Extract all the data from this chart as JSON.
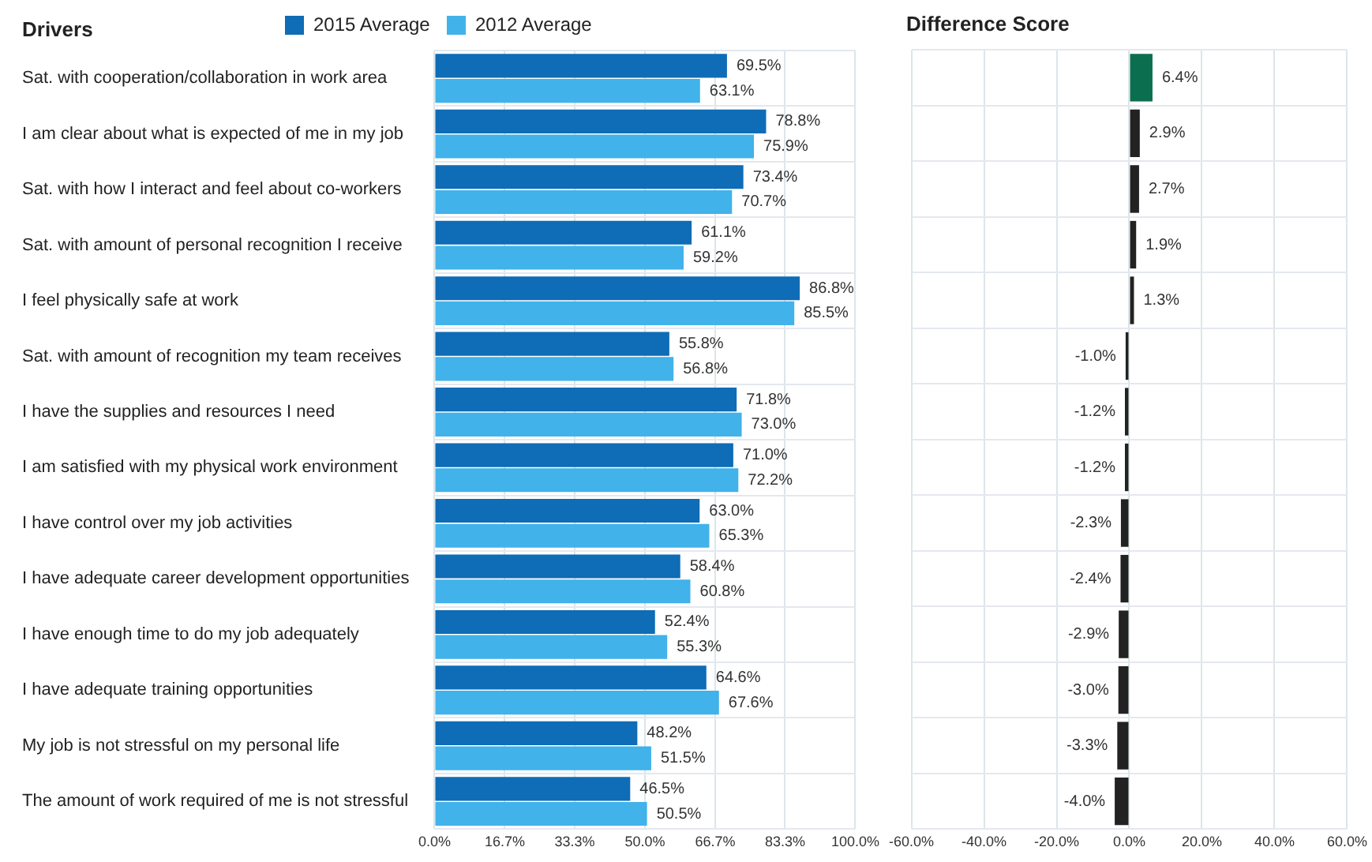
{
  "chart_data": [
    {
      "type": "bar",
      "orientation": "horizontal",
      "ylabel": "Drivers",
      "legend": "top",
      "grid": true,
      "categories": [
        "Sat. with cooperation/collaboration in work area",
        "I am clear about what is expected of me in my job",
        "Sat. with how I interact and feel about co-workers",
        "Sat. with amount of personal recognition I receive",
        "I feel physically safe at work",
        "Sat. with amount of recognition my team receives",
        "I have the supplies and resources I need",
        "I am satisfied with my physical work environment",
        "I have control over my job activities",
        "I have adequate career development opportunities",
        "I have enough time to do my job adequately",
        "I have adequate training opportunities",
        "My job is not stressful on my personal life",
        "The amount of work required of me is not stressful"
      ],
      "series": [
        {
          "name": "2015 Average",
          "color": "#0f6cb6",
          "values": [
            69.5,
            78.8,
            73.4,
            61.1,
            86.8,
            55.8,
            71.8,
            71.0,
            63.0,
            58.4,
            52.4,
            64.6,
            48.2,
            46.5
          ],
          "value_labels": [
            "69.5%",
            "78.8%",
            "73.4%",
            "61.1%",
            "86.8%",
            "55.8%",
            "71.8%",
            "71.0%",
            "63.0%",
            "58.4%",
            "52.4%",
            "64.6%",
            "48.2%",
            "46.5%"
          ]
        },
        {
          "name": "2012 Average",
          "color": "#41b2ea",
          "values": [
            63.1,
            75.9,
            70.7,
            59.2,
            85.5,
            56.8,
            73.0,
            72.2,
            65.3,
            60.8,
            55.3,
            67.6,
            51.5,
            50.5
          ],
          "value_labels": [
            "63.1%",
            "75.9%",
            "70.7%",
            "59.2%",
            "85.5%",
            "56.8%",
            "73.0%",
            "72.2%",
            "65.3%",
            "60.8%",
            "55.3%",
            "67.6%",
            "51.5%",
            "50.5%"
          ]
        }
      ],
      "xlim": [
        0,
        100
      ],
      "xticks": [
        {
          "value": 0,
          "label": "0.0%"
        },
        {
          "value": 16.7,
          "label": "16.7%"
        },
        {
          "value": 33.3,
          "label": "33.3%"
        },
        {
          "value": 50,
          "label": "50.0%"
        },
        {
          "value": 66.7,
          "label": "66.7%"
        },
        {
          "value": 83.3,
          "label": "83.3%"
        },
        {
          "value": 100,
          "label": "100.0%"
        }
      ]
    },
    {
      "type": "bar",
      "orientation": "horizontal",
      "title": "Difference Score",
      "grid": true,
      "tick_labels": "x",
      "categories": [
        null,
        null,
        null,
        null,
        null,
        null,
        null,
        null,
        null,
        null,
        null,
        null,
        null,
        null
      ],
      "series": [
        {
          "colors": [
            "#0b6e4f",
            "#222222",
            "#222222",
            "#222222",
            "#222222",
            "#222222",
            "#222222",
            "#222222",
            "#222222",
            "#222222",
            "#222222",
            "#222222",
            "#222222",
            "#222222"
          ],
          "values": [
            6.4,
            2.9,
            2.7,
            1.9,
            1.3,
            -1.0,
            -1.2,
            -1.2,
            -2.3,
            -2.4,
            -2.9,
            -3.0,
            -3.3,
            -4.0
          ],
          "value_labels": [
            "6.4%",
            "2.9%",
            "2.7%",
            "1.9%",
            "1.3%",
            "-1.0%",
            "-1.2%",
            "-1.2%",
            "-2.3%",
            "-2.4%",
            "-2.9%",
            "-3.0%",
            "-3.3%",
            "-4.0%"
          ]
        }
      ],
      "xlim": [
        -60,
        60
      ],
      "xticks": [
        {
          "value": -60,
          "label": "-60.0%"
        },
        {
          "value": -40,
          "label": "-40.0%"
        },
        {
          "value": -20,
          "label": "-20.0%"
        },
        {
          "value": 0,
          "label": "0.0%"
        },
        {
          "value": 20,
          "label": "20.0%"
        },
        {
          "value": 40,
          "label": "40.0%"
        },
        {
          "value": 60,
          "label": "60.0%"
        }
      ]
    }
  ]
}
